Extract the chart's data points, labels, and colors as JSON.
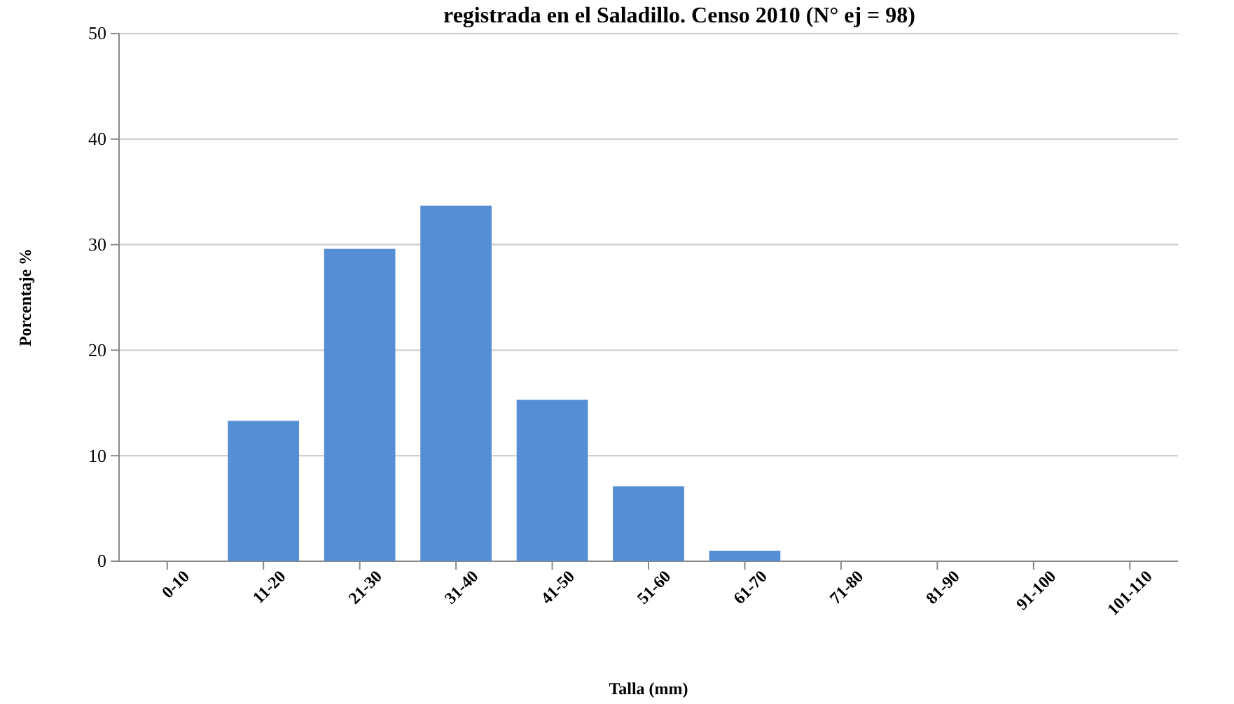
{
  "chart_data": {
    "type": "bar",
    "title": "registrada en el Saladillo. Censo 2010 (N° ej = 98)",
    "xlabel": "Talla (mm)",
    "ylabel": "Porcentaje  %",
    "categories": [
      "0-10",
      "11-20",
      "21-30",
      "31-40",
      "41-50",
      "51-60",
      "61-70",
      "71-80",
      "81-90",
      "91-100",
      "101-110"
    ],
    "values": [
      0,
      13.3,
      29.6,
      33.7,
      15.3,
      7.1,
      1.0,
      0,
      0,
      0,
      0
    ],
    "color": "#558ed5",
    "ylim": [
      0,
      50
    ],
    "yticks": [
      0,
      10,
      20,
      30,
      40,
      50
    ],
    "grid": "y"
  }
}
